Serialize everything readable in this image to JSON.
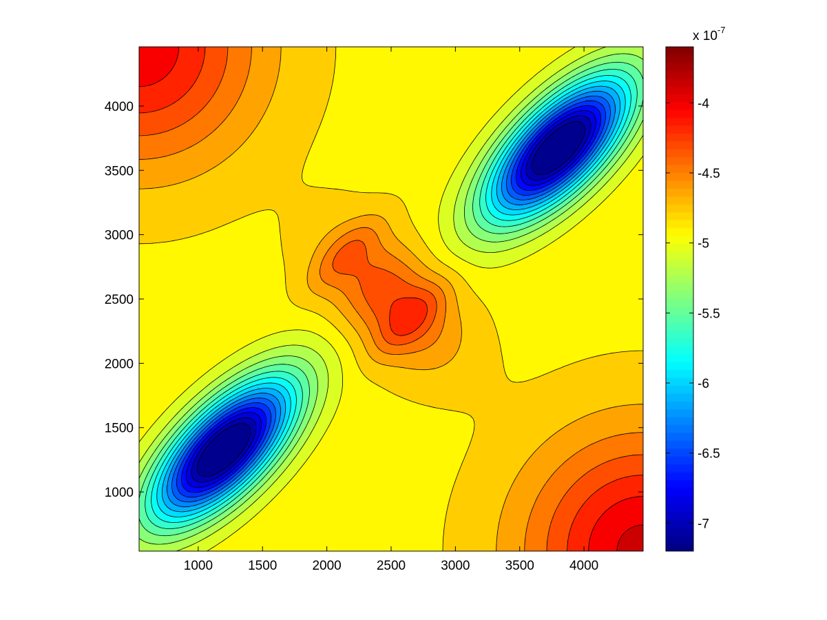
{
  "chart_data": {
    "type": "heatmap",
    "subtype": "filled-contour",
    "title": "",
    "xlabel": "",
    "ylabel": "",
    "xlim": [
      540,
      4460
    ],
    "ylim": [
      540,
      4460
    ],
    "x_ticks": [
      1000,
      1500,
      2000,
      2500,
      3000,
      3500,
      4000
    ],
    "x_tick_labels": [
      "1000",
      "1500",
      "2000",
      "2500",
      "3000",
      "3500",
      "4000"
    ],
    "y_ticks": [
      1000,
      1500,
      2000,
      2500,
      3000,
      3500,
      4000
    ],
    "y_tick_labels": [
      "1000",
      "1500",
      "2000",
      "2500",
      "3000",
      "3500",
      "4000"
    ],
    "colormap": "jet",
    "colorbar": {
      "range": [
        -7.2,
        -3.6
      ],
      "ticks": [
        -7,
        -6.5,
        -6,
        -5.5,
        -5,
        -4.5,
        -4
      ],
      "tick_labels": [
        "-7",
        "-6.5",
        "-6",
        "-5.5",
        "-5",
        "-4.5",
        "-4"
      ],
      "exponent_base": "x 10",
      "exponent_power": "-7",
      "placement": "right"
    },
    "contour_levels": [
      -7.1,
      -6.95,
      -6.8,
      -6.65,
      -6.5,
      -6.35,
      -6.2,
      -6.05,
      -5.9,
      -5.75,
      -5.6,
      -5.45,
      -5.3,
      -5.15,
      -5.0,
      -4.85,
      -4.7,
      -4.55,
      -4.4,
      -4.25,
      -4.1,
      -3.95,
      -3.8
    ],
    "features": [
      {
        "kind": "minimum",
        "x": 1380,
        "y": 1480,
        "value": -7.2
      },
      {
        "kind": "minimum",
        "x": 3780,
        "y": 3580,
        "value": -7.2
      },
      {
        "kind": "maximum",
        "x": 2230,
        "y": 2870,
        "value": -4.3
      },
      {
        "kind": "maximum",
        "x": 2700,
        "y": 2330,
        "value": -4.3
      },
      {
        "kind": "maximum-corner",
        "x": 540,
        "y": 4460,
        "value": -4.0
      },
      {
        "kind": "maximum-corner",
        "x": 4460,
        "y": 540,
        "value": -3.7
      }
    ],
    "grid": false
  }
}
